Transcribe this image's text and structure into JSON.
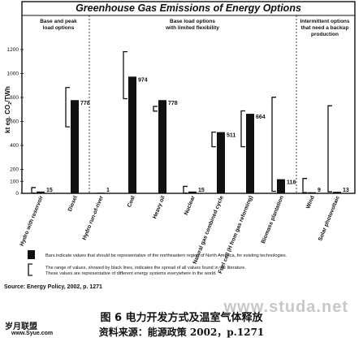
{
  "chart_data": {
    "type": "bar",
    "title": "Greenhouse Gas Emissions of Energy Options",
    "ylabel": "kt eq. CO2/TWh",
    "ylim": [
      0,
      1300
    ],
    "yticks": [
      "0",
      "100",
      "200",
      "400",
      "600",
      "800",
      "1000",
      "1200"
    ],
    "sections": [
      "Base and peak load options",
      "Base load options with limited flexibility",
      "Intermittent options that need a backup production"
    ],
    "categories": [
      "Hydro with reservoir",
      "Diesel",
      "Hydro run-of-river",
      "Coal",
      "Heavy oil",
      "Nuclear",
      "Natural gas combined cycle",
      "Fuel cell (H from gas reforming)",
      "Biomass plantation",
      "Wind",
      "Solar photovoltaic"
    ],
    "values": [
      15,
      778,
      1,
      974,
      778,
      15,
      511,
      664,
      118,
      9,
      13
    ],
    "value_labels": [
      "15",
      "778",
      "1",
      "974",
      "778",
      "15",
      "511",
      "664",
      "118",
      "9",
      "13"
    ],
    "ranges": [
      [
        2,
        48
      ],
      [
        555,
        883
      ],
      [
        null,
        null
      ],
      [
        790,
        1182
      ],
      [
        686,
        726
      ],
      [
        2,
        58
      ],
      [
        389,
        511
      ],
      [
        389,
        688
      ],
      [
        17,
        802
      ],
      [
        7,
        124
      ],
      [
        13,
        731
      ]
    ],
    "legend": {
      "bar": "Bars indicate values that should be representative of the northeastern region of North America, for existing technologies.",
      "range_line1": "The range of values, showed by black lines, indicates the spread of all values found in the literature.",
      "range_line2": "These values are representative of different energy systems everywhere in the world."
    },
    "grid": false
  },
  "source": "Source: Energy Policy, 2002, p. 1271",
  "watermark": "www.studa.net",
  "caption": {
    "figure": "图 6    电力开发方式及温室气体释放",
    "reference": "资料来源：能源政策 2002，p.1271"
  },
  "logo": {
    "name": "岁月联盟",
    "url": "www.Syue.com"
  }
}
